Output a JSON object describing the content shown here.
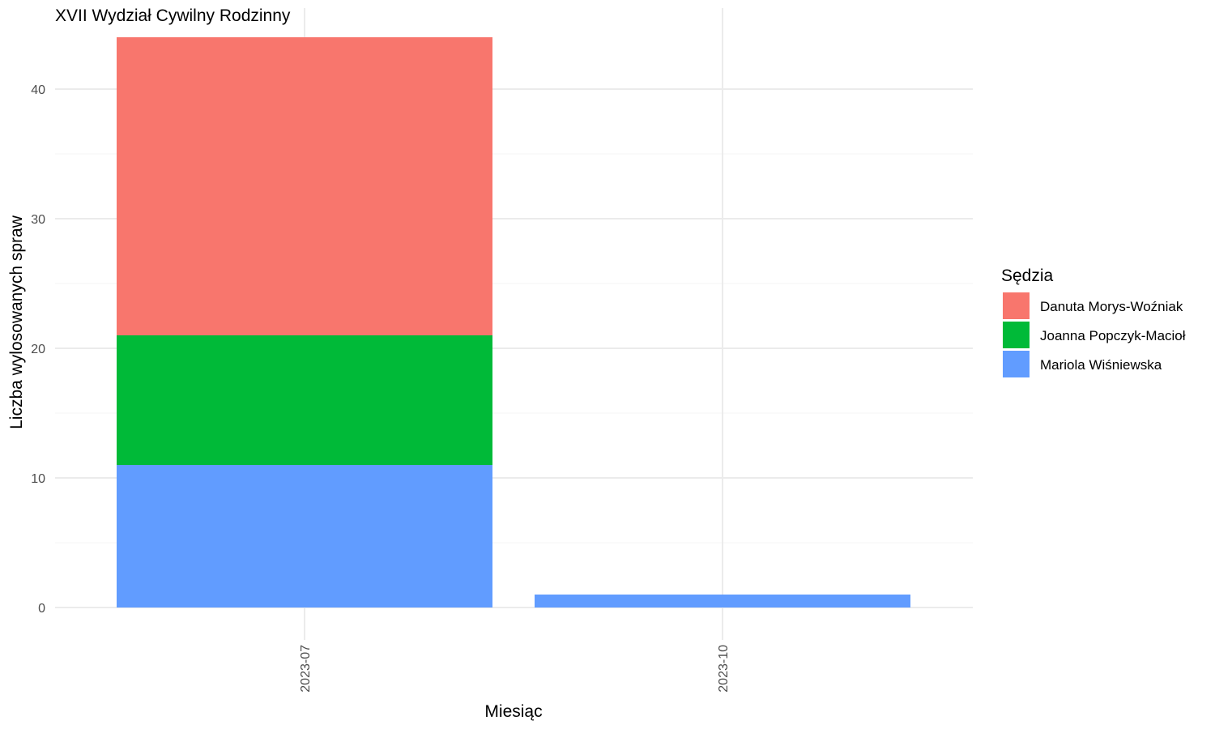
{
  "chart_data": {
    "type": "bar",
    "stacked": true,
    "title": "XVII Wydział Cywilny Rodzinny",
    "xlabel": "Miesiąc",
    "ylabel": "Liczba wylosowanych spraw",
    "categories": [
      "2023-07",
      "2023-10"
    ],
    "ylim": [
      0,
      44
    ],
    "yticks": [
      0,
      10,
      20,
      30,
      40
    ],
    "grid": true,
    "legend": {
      "title": "Sędzia",
      "placement": "right"
    },
    "series": [
      {
        "name": "Mariola Wiśniewska",
        "color": "#619CFF",
        "values": [
          11,
          1
        ]
      },
      {
        "name": "Joanna Popczyk-Macioł",
        "color": "#00BA38",
        "values": [
          10,
          0
        ]
      },
      {
        "name": "Danuta Morys-Woźniak",
        "color": "#F8766D",
        "values": [
          23,
          0
        ]
      }
    ],
    "legend_order": [
      "Danuta Morys-Woźniak",
      "Joanna Popczyk-Macioł",
      "Mariola Wiśniewska"
    ]
  }
}
